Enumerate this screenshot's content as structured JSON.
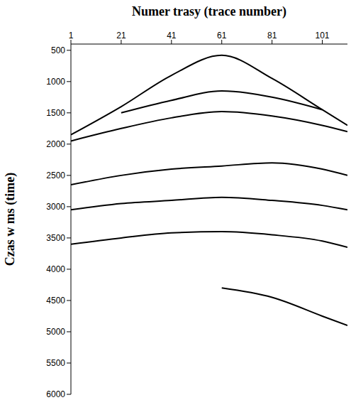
{
  "chart_data": {
    "type": "line",
    "title": "Numer trasy (trace number)",
    "y_label": "Czas w ms (time)",
    "x": [
      1,
      21,
      41,
      61,
      81,
      101,
      111
    ],
    "series": [
      {
        "color": "#000000",
        "values": [
          1850,
          1400,
          900,
          580,
          950,
          1450,
          1700
        ]
      },
      {
        "color": "#000000",
        "values": [
          null,
          1500,
          1300,
          1150,
          1250,
          1450,
          null
        ]
      },
      {
        "color": "#000000",
        "values": [
          1950,
          1750,
          1580,
          1480,
          1550,
          1700,
          1800
        ]
      },
      {
        "color": "#000000",
        "values": [
          2650,
          2500,
          2400,
          2350,
          2300,
          2400,
          2500
        ]
      },
      {
        "color": "#000000",
        "values": [
          3050,
          2950,
          2900,
          2850,
          2900,
          2980,
          3050
        ]
      },
      {
        "color": "#000000",
        "values": [
          3600,
          3500,
          3420,
          3400,
          3450,
          3550,
          3650
        ]
      },
      {
        "color": "#000000",
        "values": [
          null,
          null,
          null,
          4300,
          4450,
          4750,
          4900
        ]
      }
    ],
    "xlim": [
      1,
      111
    ],
    "xticks": [
      1,
      21,
      41,
      61,
      81,
      101
    ],
    "ylim": [
      400,
      6000
    ],
    "yticks": [
      500,
      1000,
      1500,
      2000,
      2500,
      3000,
      3500,
      4000,
      4500,
      5000,
      5500,
      6000
    ],
    "grid": false,
    "legend": null
  }
}
